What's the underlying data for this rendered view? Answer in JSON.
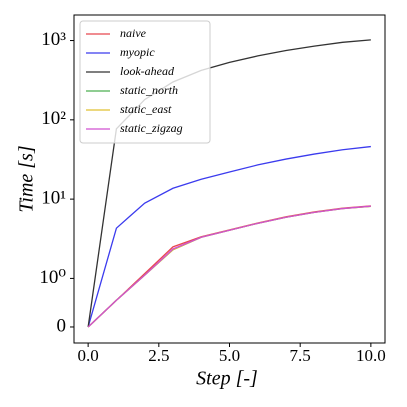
{
  "chart_data": {
    "type": "line",
    "x_label": "Step [-]",
    "y_label": "Time [s]",
    "x": [
      0,
      1,
      2,
      3,
      4,
      5,
      6,
      7,
      8,
      9,
      10
    ],
    "series": [
      {
        "name": "naive",
        "color": "#e8474f",
        "values": [
          0,
          0.55,
          1.15,
          2.5,
          3.35,
          4.1,
          5.0,
          6.0,
          6.9,
          7.7,
          8.2
        ]
      },
      {
        "name": "myopic",
        "color": "#3b3bee",
        "values": [
          0,
          4.3,
          8.9,
          13.7,
          17.8,
          22,
          27,
          32,
          37,
          42,
          46
        ]
      },
      {
        "name": "look-ahead",
        "color": "#333333",
        "values": [
          0,
          77,
          180,
          300,
          420,
          530,
          640,
          750,
          850,
          950,
          1020
        ]
      },
      {
        "name": "static_north",
        "color": "#4caf50",
        "values": [
          0,
          0.55,
          1.1,
          2.3,
          3.3,
          4.05,
          4.95,
          5.9,
          6.8,
          7.6,
          8.1
        ]
      },
      {
        "name": "static_east",
        "color": "#e0c030",
        "values": [
          0,
          0.55,
          1.1,
          2.3,
          3.3,
          4.05,
          4.95,
          5.9,
          6.8,
          7.6,
          8.1
        ]
      },
      {
        "name": "static_zigzag",
        "color": "#d050d0",
        "values": [
          0,
          0.55,
          1.1,
          2.35,
          3.3,
          4.05,
          4.95,
          5.9,
          6.8,
          7.6,
          8.15
        ]
      }
    ],
    "xlim": [
      -0.5,
      10.5
    ],
    "xticks": [
      {
        "value": 0,
        "label": "0.0"
      },
      {
        "value": 2.5,
        "label": "2.5"
      },
      {
        "value": 5,
        "label": "5.0"
      },
      {
        "value": 7.5,
        "label": "7.5"
      },
      {
        "value": 10,
        "label": "10.0"
      }
    ],
    "yscale": "symlog",
    "linthresh": 1,
    "ylim": [
      -0.33,
      2100
    ],
    "yticks": [
      0,
      {
        "value": 1,
        "label": "10⁰"
      },
      {
        "value": 10,
        "label": "10¹"
      },
      {
        "value": 100,
        "label": "10²"
      },
      {
        "value": 1000,
        "label": "10³"
      }
    ],
    "grid": false,
    "legend": "upper left"
  }
}
